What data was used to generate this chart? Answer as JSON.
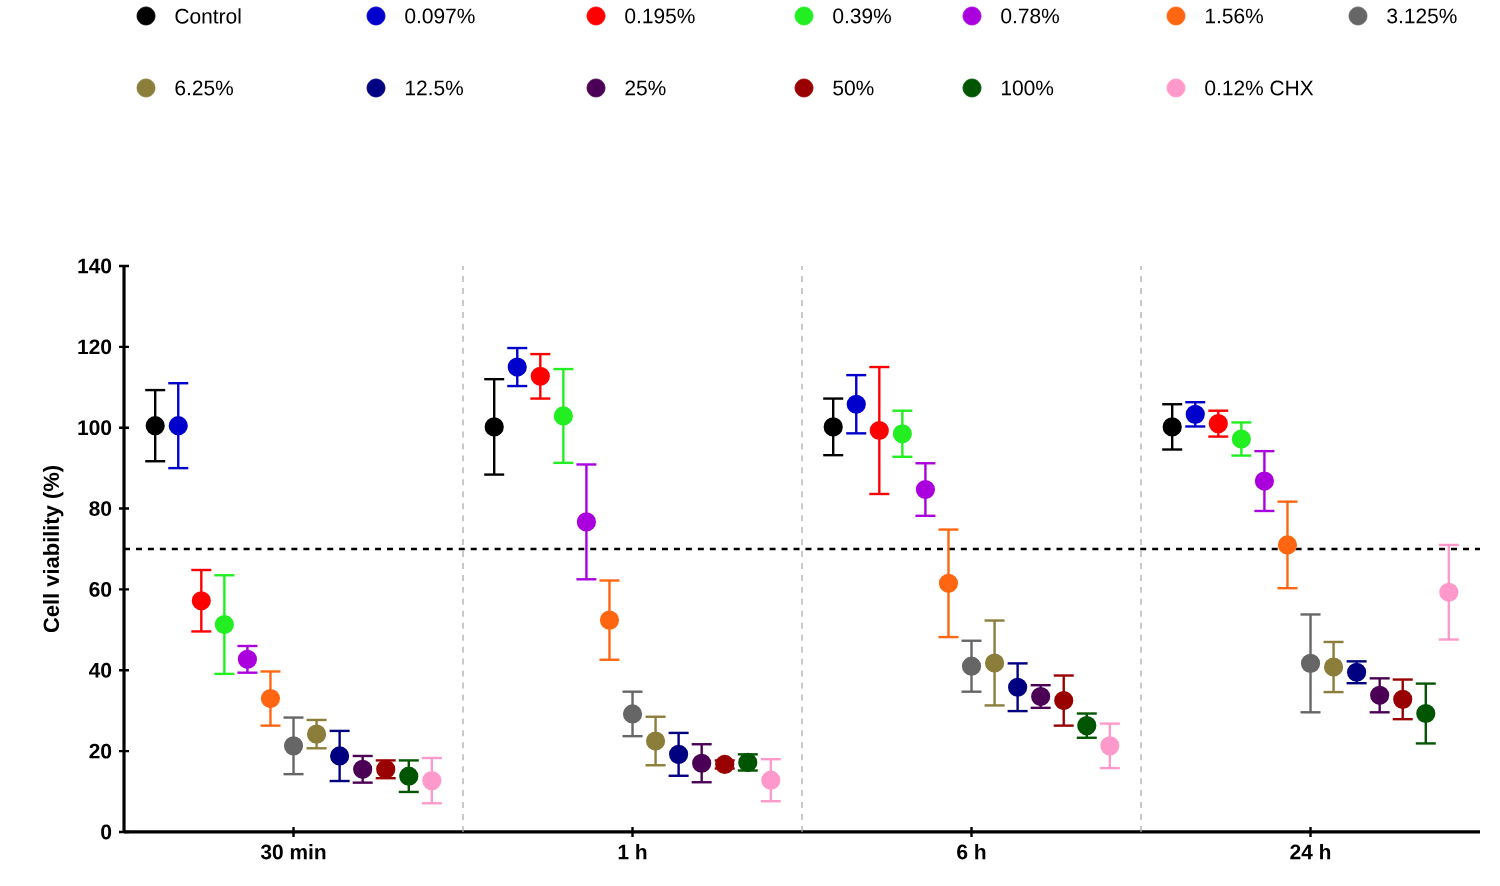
{
  "chart_data": {
    "type": "scatter",
    "ylabel": "Cell viability (%)",
    "categories": [
      "30 min",
      "1 h",
      "6 h",
      "24 h"
    ],
    "ylim": [
      0,
      140
    ],
    "yticks": [
      0,
      20,
      40,
      60,
      80,
      100,
      120,
      140
    ],
    "legend": "top",
    "marker": "circle",
    "ref_lines": [
      {
        "axis": "y",
        "value": 70,
        "color": "#000000",
        "line_style": "dashed"
      }
    ],
    "series": [
      {
        "name": "Control",
        "color": "#000000",
        "values": [
          100.5,
          100.2,
          100.2,
          100.2
        ],
        "errors": [
          8.8,
          11.8,
          7,
          5.6
        ]
      },
      {
        "name": "0.097%",
        "color": "#0000cc",
        "values": [
          100.5,
          115,
          105.8,
          103.3
        ],
        "errors": [
          10.5,
          4.7,
          7.2,
          3
        ]
      },
      {
        "name": "0.195%",
        "color": "#ff0000",
        "values": [
          57.2,
          112.7,
          99.3,
          101
        ],
        "errors": [
          7.6,
          5.5,
          15.7,
          3.2
        ]
      },
      {
        "name": "0.39%",
        "color": "#22ee22",
        "values": [
          51.3,
          102.9,
          98.5,
          97.2
        ],
        "errors": [
          12.2,
          11.6,
          5.7,
          4.1
        ]
      },
      {
        "name": "0.78%",
        "color": "#aa00dd",
        "values": [
          42.7,
          76.7,
          84.7,
          86.8
        ],
        "errors": [
          3.3,
          14.2,
          6.5,
          7.4
        ]
      },
      {
        "name": "1.56%",
        "color": "#ff6611",
        "values": [
          33,
          52.4,
          61.5,
          71
        ],
        "errors": [
          6.7,
          9.8,
          13.3,
          10.7
        ]
      },
      {
        "name": "3.125%",
        "color": "#666666",
        "values": [
          21.3,
          29.2,
          41,
          41.7
        ],
        "errors": [
          7,
          5.5,
          6.3,
          12.1
        ]
      },
      {
        "name": "6.25%",
        "color": "#8b7d3a",
        "values": [
          24.2,
          22.5,
          41.8,
          40.8
        ],
        "errors": [
          3.5,
          6,
          10.5,
          6.2
        ]
      },
      {
        "name": "12.5%",
        "color": "#000080",
        "values": [
          18.8,
          19.2,
          35.8,
          39.5
        ],
        "errors": [
          6.2,
          5.3,
          5.9,
          2.7
        ]
      },
      {
        "name": "25%",
        "color": "#4b0055",
        "values": [
          15.5,
          17,
          33.5,
          33.8
        ],
        "errors": [
          3.3,
          4.7,
          2.8,
          4.2
        ]
      },
      {
        "name": "50%",
        "color": "#990000",
        "values": [
          15.5,
          16.7,
          32.5,
          32.8
        ],
        "errors": [
          2.2,
          1,
          6.2,
          4.9
        ]
      },
      {
        "name": "100%",
        "color": "#005500",
        "values": [
          13.8,
          17.2,
          26.3,
          29.3
        ],
        "errors": [
          3.9,
          2,
          3,
          7.4
        ]
      },
      {
        "name": "0.12% CHX",
        "color": "#ff99cc",
        "values": [
          12.7,
          12.8,
          21.3,
          59.3
        ],
        "errors": [
          5.6,
          5.2,
          5.5,
          11.7
        ]
      }
    ]
  }
}
